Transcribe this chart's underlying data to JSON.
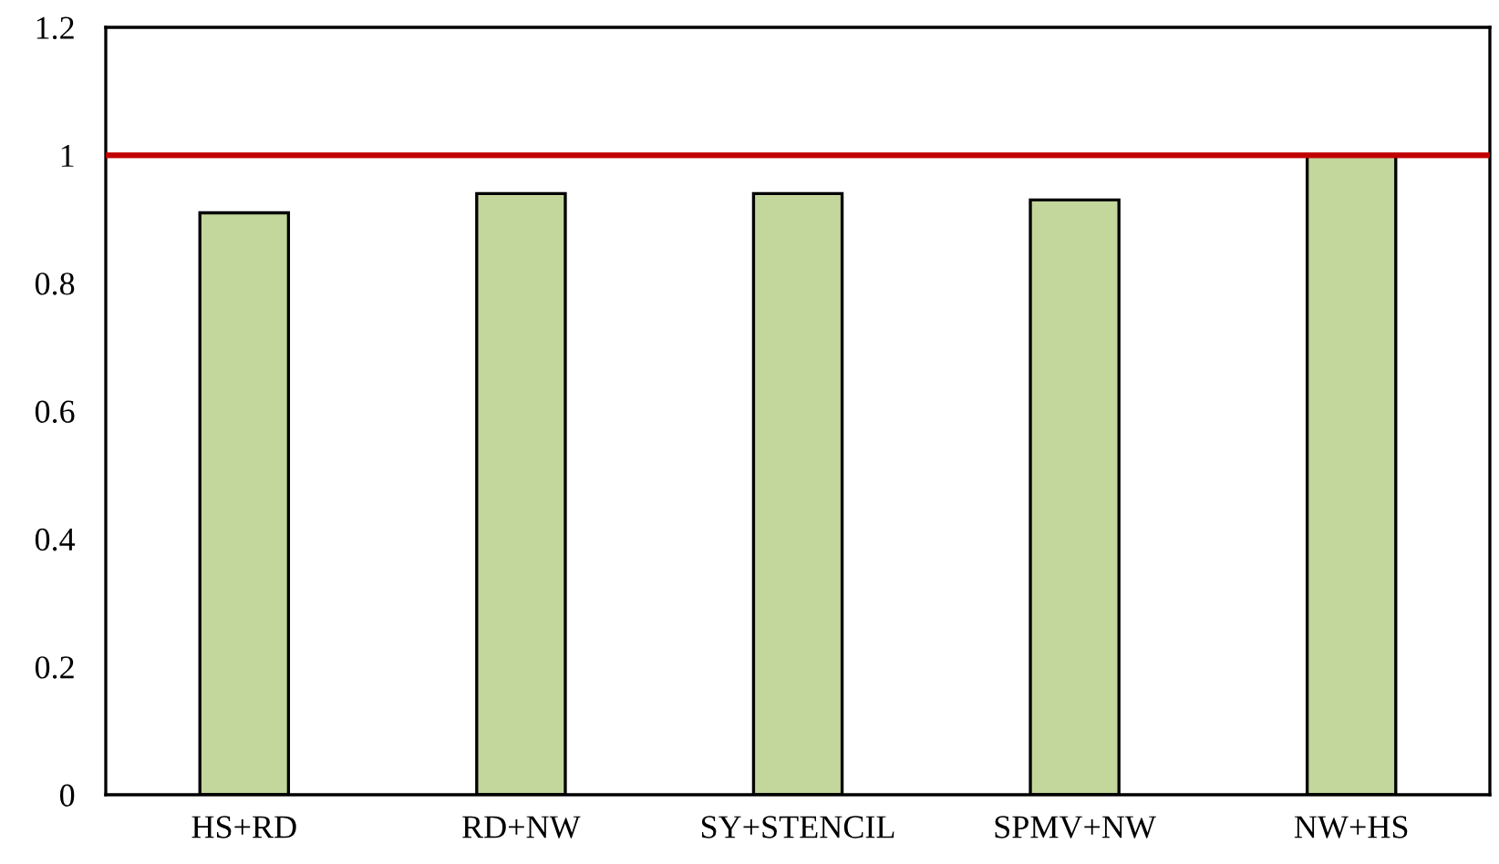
{
  "chart_data": {
    "type": "bar",
    "categories": [
      "HS+RD",
      "RD+NW",
      "SY+STENCIL",
      "SPMV+NW",
      "NW+HS"
    ],
    "values": [
      0.91,
      0.94,
      0.94,
      0.93,
      1.0
    ],
    "color": "#c3d69b",
    "ylim": [
      0,
      1.2
    ],
    "yticks": [
      0,
      0.2,
      0.4,
      0.6,
      0.8,
      1,
      1.2
    ],
    "grid": false,
    "legend": false,
    "ref_lines": [
      {
        "axis": "y",
        "value": 1,
        "color": "#c00000"
      }
    ]
  }
}
